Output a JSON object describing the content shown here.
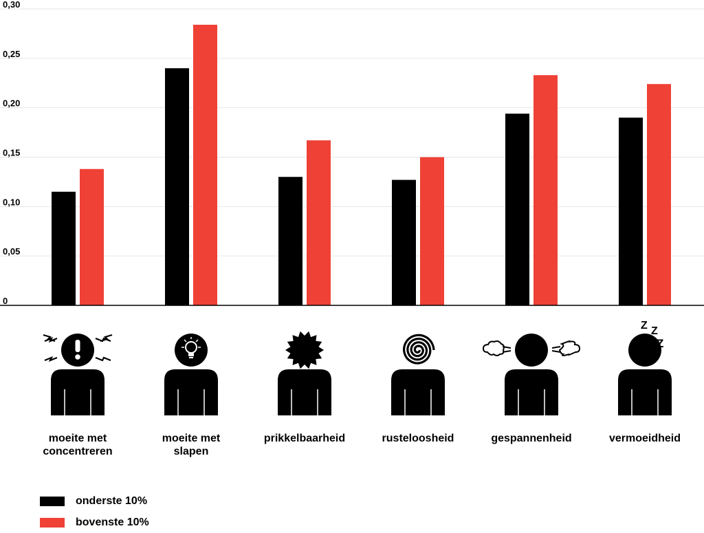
{
  "chart_data": {
    "type": "bar",
    "categories": [
      "moeite met concentreren",
      "moeite met slapen",
      "prikkelbaarheid",
      "rusteloosheid",
      "gespannenheid",
      "vermoeidheid"
    ],
    "category_labels": [
      [
        "moeite met",
        "concentreren"
      ],
      [
        "moeite met",
        "slapen"
      ],
      [
        "prikkelbaarheid"
      ],
      [
        "rusteloosheid"
      ],
      [
        "gespannenheid"
      ],
      [
        "vermoeidheid"
      ]
    ],
    "series": [
      {
        "name": "onderste 10%",
        "color": "#000000",
        "values": [
          0.115,
          0.24,
          0.13,
          0.127,
          0.194,
          0.19
        ]
      },
      {
        "name": "bovenste 10%",
        "color": "#EF4136",
        "values": [
          0.138,
          0.284,
          0.167,
          0.15,
          0.233,
          0.224
        ]
      }
    ],
    "ylim": [
      0,
      0.3
    ],
    "yticks": [
      0,
      0.05,
      0.1,
      0.15,
      0.2,
      0.25,
      0.3
    ],
    "ytick_labels": [
      "0",
      "0,05",
      "0,10",
      "0,15",
      "0,20",
      "0,25",
      "0,30"
    ],
    "grid": true,
    "legend_position": "bottom-left",
    "icons": [
      "person-exclamation-icon",
      "person-lightbulb-icon",
      "person-spiky-head-icon",
      "person-spiral-icon",
      "person-steam-icon",
      "person-zzz-icon"
    ],
    "zzz_text": "Z Z Z"
  },
  "legend": {
    "items": [
      {
        "label": "onderste 10%",
        "color": "#000000"
      },
      {
        "label": "bovenste 10%",
        "color": "#EF4136"
      }
    ]
  }
}
